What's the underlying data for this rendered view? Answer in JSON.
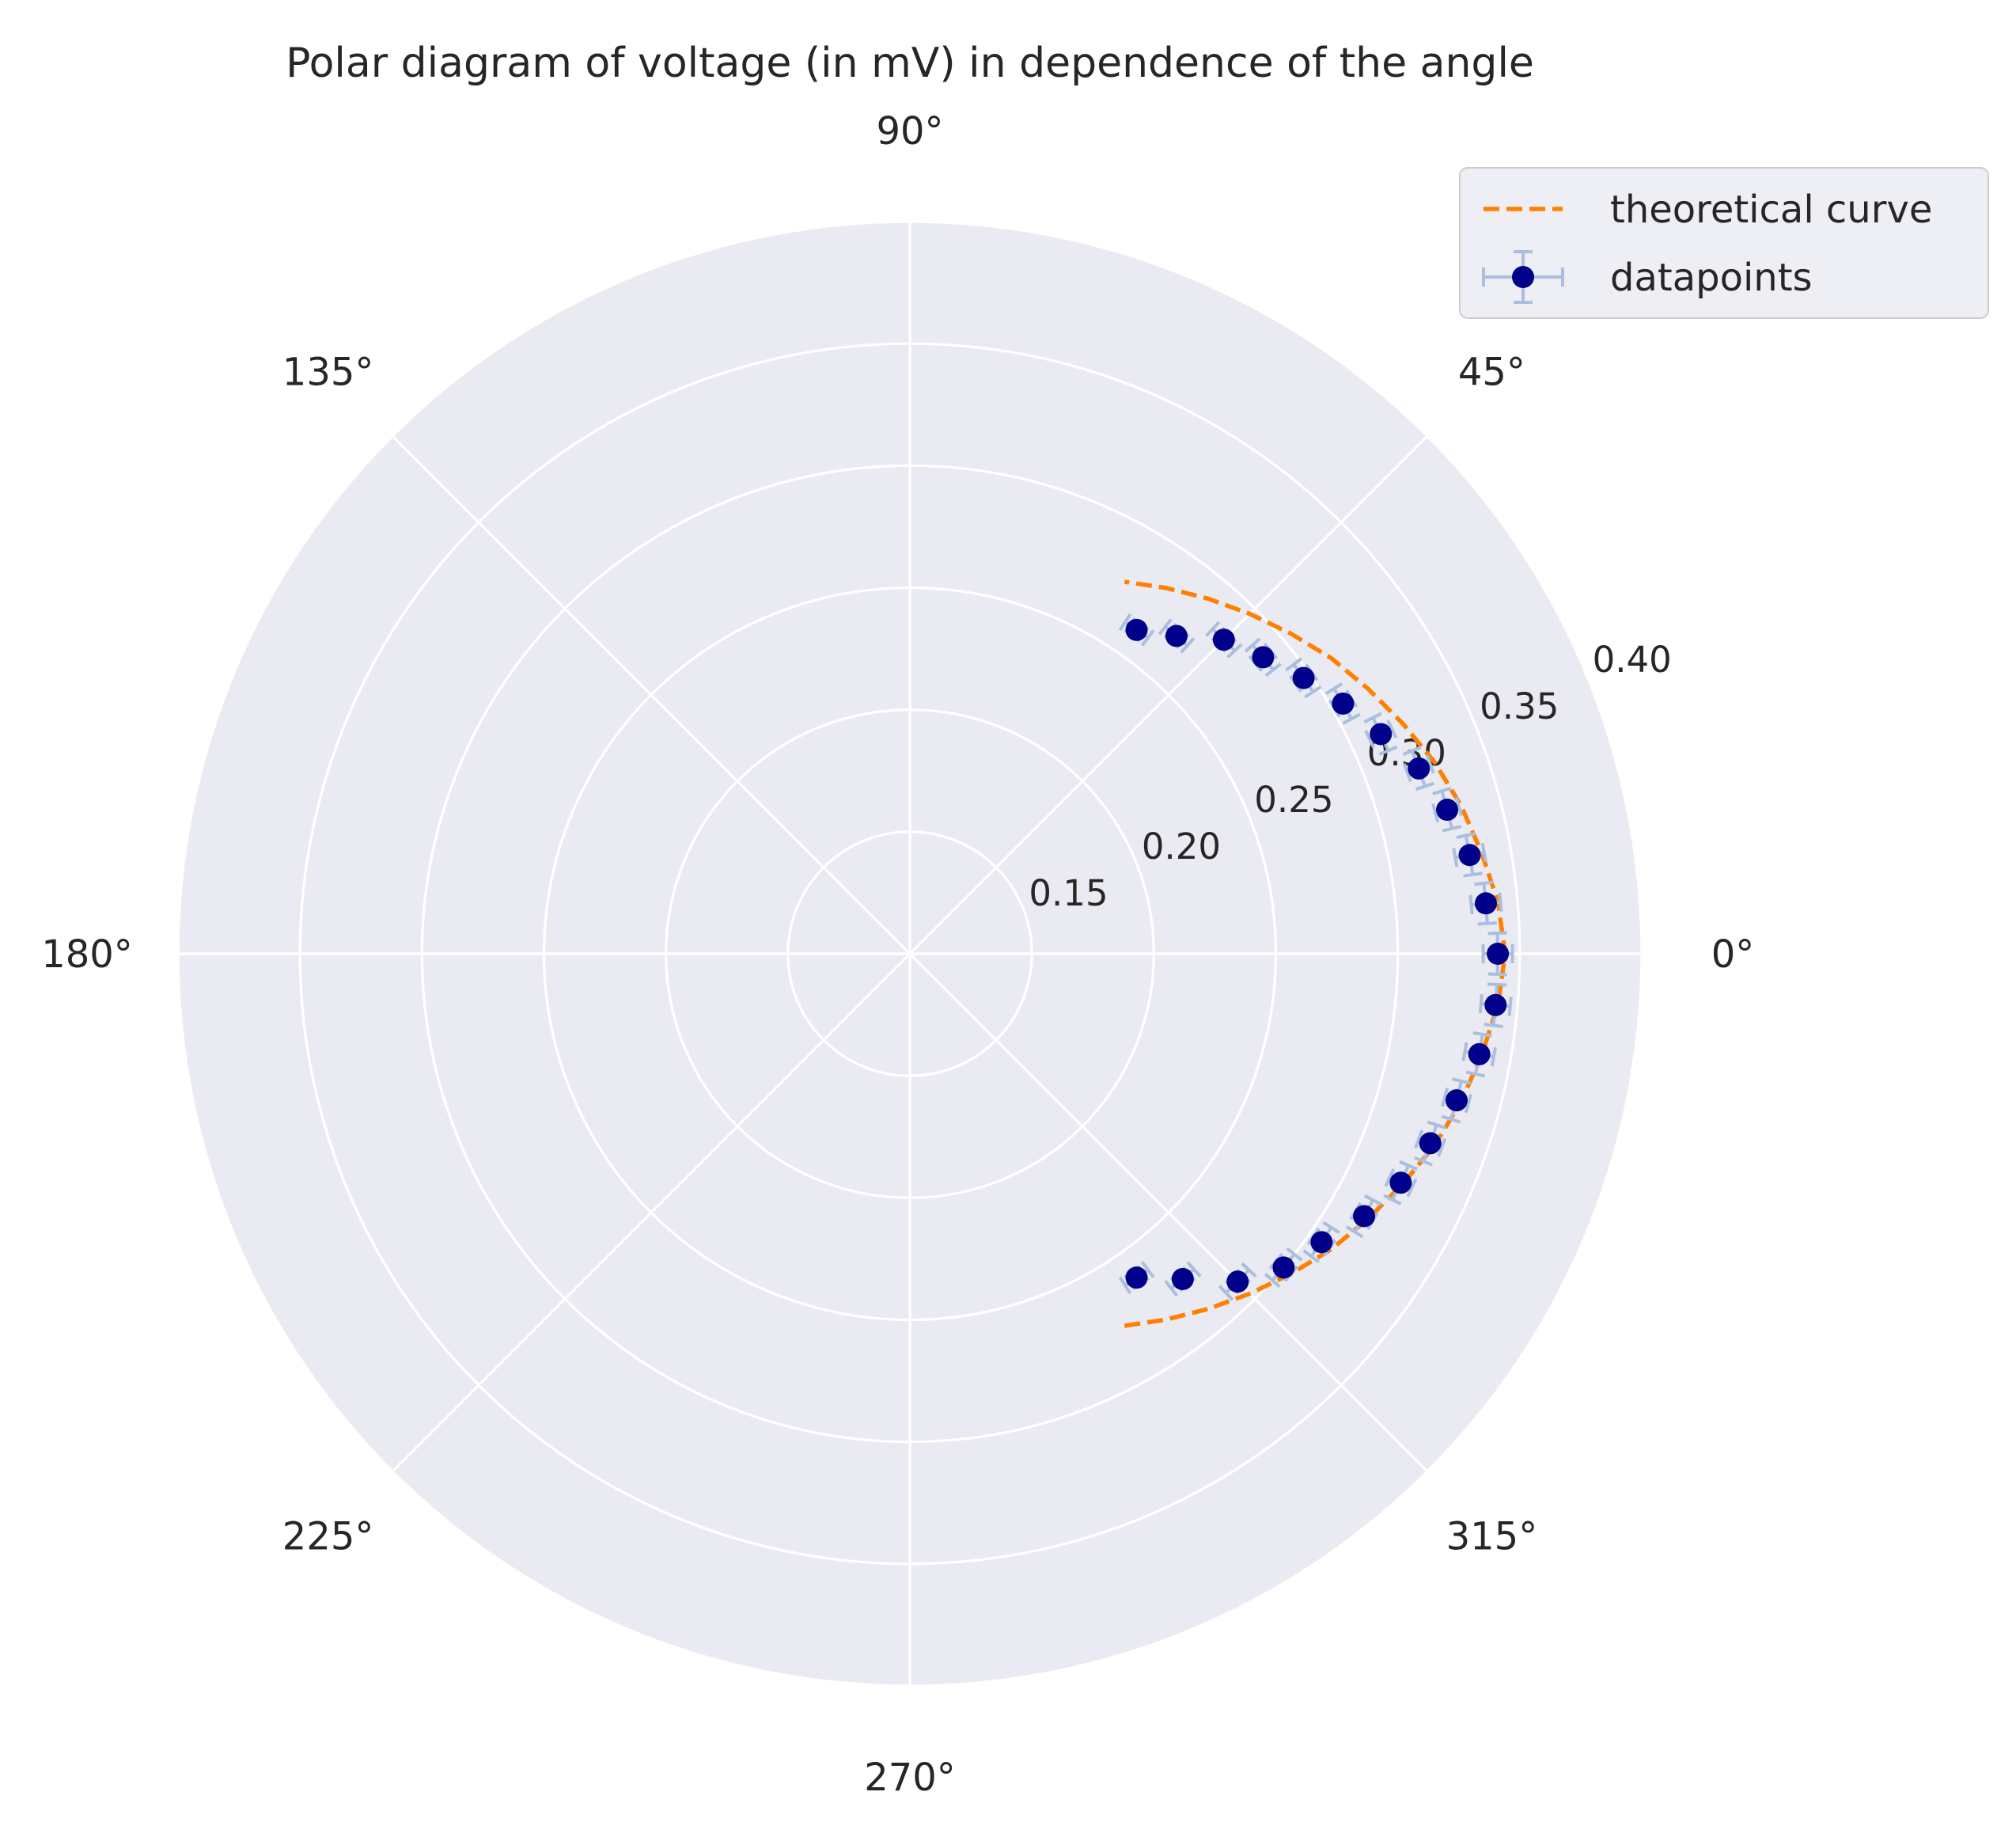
{
  "chart_data": {
    "type": "polar",
    "title": "Polar diagram of voltage (in mV) in dependence of the angle",
    "angle_unit": "deg",
    "angle_ticks": [
      0,
      45,
      90,
      135,
      180,
      225,
      270,
      315
    ],
    "angle_tick_labels": [
      "0°",
      "45°",
      "90°",
      "135°",
      "180°",
      "225°",
      "270°",
      "315°"
    ],
    "radial_ticks": [
      0.15,
      0.2,
      0.25,
      0.3,
      0.35,
      0.4
    ],
    "radial_tick_labels": [
      "0.15",
      "0.20",
      "0.25",
      "0.30",
      "0.35",
      "0.40"
    ],
    "rlim": [
      0.1,
      0.4
    ],
    "radial_label_angle_deg": 22.5,
    "grid": true,
    "legend_position": "upper-right, outside",
    "colors": {
      "background": "#eaeaf2",
      "grid": "#ffffff",
      "theory": "#ff8000",
      "marker": "#00008b",
      "errorbar": "#a9bfdd"
    },
    "series": [
      {
        "name": "theoretical curve",
        "kind": "line",
        "style": "dashed",
        "theta": [
          -60,
          -55,
          -50,
          -45,
          -40,
          -35,
          -30,
          -25,
          -20,
          -15,
          -10,
          -5,
          0,
          5,
          10,
          15,
          20,
          25,
          30,
          35,
          40,
          45,
          50,
          55,
          60
        ],
        "r": [
          0.276,
          0.283,
          0.29,
          0.297,
          0.304,
          0.311,
          0.317,
          0.323,
          0.329,
          0.334,
          0.338,
          0.342,
          0.344,
          0.342,
          0.338,
          0.334,
          0.329,
          0.323,
          0.317,
          0.311,
          0.304,
          0.297,
          0.29,
          0.283,
          0.276
        ]
      },
      {
        "name": "datapoints",
        "kind": "errorbar",
        "theta": [
          -55,
          -50,
          -45,
          -40,
          -35,
          -30,
          -25,
          -20,
          -15,
          -10,
          -5,
          0,
          5,
          10,
          15,
          20,
          25,
          30,
          35,
          40,
          45,
          50,
          55
        ],
        "r": [
          0.262,
          0.274,
          0.29,
          0.3,
          0.306,
          0.315,
          0.322,
          0.327,
          0.332,
          0.337,
          0.341,
          0.341,
          0.337,
          0.333,
          0.328,
          0.322,
          0.313,
          0.305,
          0.297,
          0.289,
          0.282,
          0.27,
          0.262
        ],
        "theta_err": [
          2.0,
          2.0,
          2.0,
          2.0,
          2.0,
          2.0,
          2.0,
          2.0,
          2.0,
          2.0,
          2.0,
          2.0,
          2.0,
          2.0,
          2.0,
          2.0,
          2.0,
          2.0,
          2.0,
          2.0,
          2.0,
          2.0,
          2.0
        ],
        "r_err": [
          0.003,
          0.003,
          0.003,
          0.004,
          0.004,
          0.004,
          0.005,
          0.005,
          0.005,
          0.006,
          0.006,
          0.006,
          0.006,
          0.006,
          0.005,
          0.005,
          0.005,
          0.004,
          0.004,
          0.004,
          0.003,
          0.003,
          0.003
        ]
      }
    ]
  }
}
